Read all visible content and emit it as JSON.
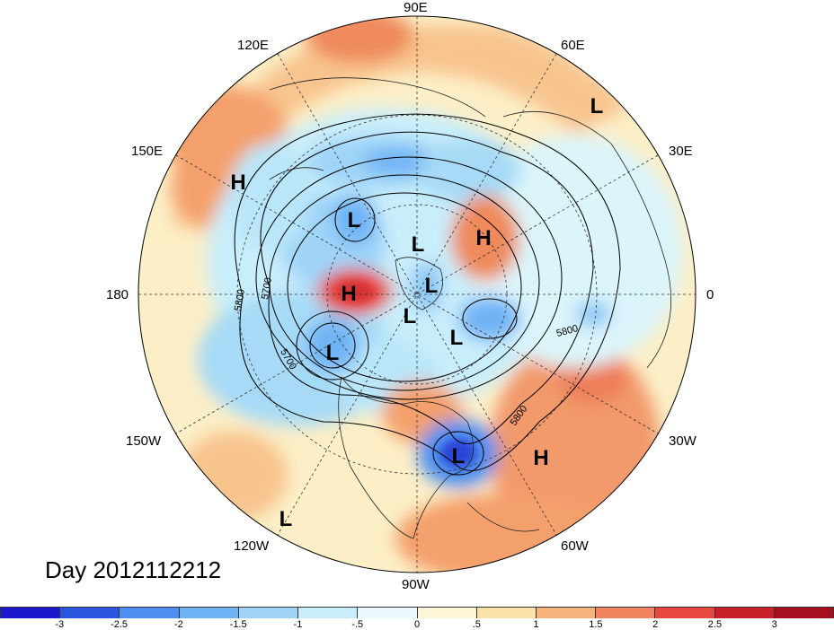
{
  "title": "Day 2012112212",
  "longitude_labels": [
    "90E",
    "120E",
    "60E",
    "150E",
    "30E",
    "180",
    "0",
    "150W",
    "30W",
    "120W",
    "60W",
    "90W"
  ],
  "pressure_centers": [
    "L",
    "H",
    "L",
    "H",
    "L",
    "H",
    "L",
    "L",
    "L",
    "L",
    "L",
    "H",
    "L"
  ],
  "contour_labels": [
    "5700",
    "5800",
    "5700",
    "5800",
    "5800"
  ],
  "colorbar": {
    "ticks": [
      "-3",
      "-2.5",
      "-2",
      "-1.5",
      "-1",
      "-.5",
      "0",
      ".5",
      "1",
      "1.5",
      "2",
      "2.5",
      "3"
    ],
    "colors": [
      "#1a1acc",
      "#2a55e0",
      "#4d8ff0",
      "#6fb4f5",
      "#9fd4f8",
      "#c9eefb",
      "#eaf9fc",
      "#fdf6d8",
      "#fbe2a8",
      "#f7b37c",
      "#f2835f",
      "#e8473f",
      "#c81f2a",
      "#a50f20"
    ]
  }
}
